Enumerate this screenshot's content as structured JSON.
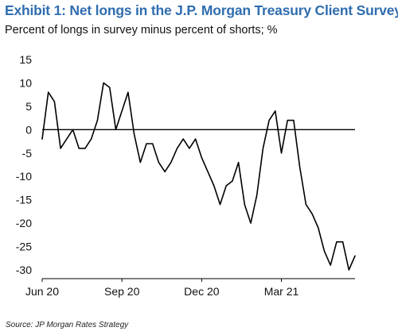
{
  "header": {
    "title": "Exhibit 1: Net longs in the J.P. Morgan Treasury Client Survey",
    "subtitle": "Percent of longs in survey minus percent of shorts; %"
  },
  "footer": {
    "source": "Source: JP Morgan Rates Strategy"
  },
  "colors": {
    "title": "#2f6db0",
    "line": "#000000",
    "axis": "#000000"
  },
  "chart_data": {
    "type": "line",
    "title": "Exhibit 1: Net longs in the J.P. Morgan Treasury Client Survey",
    "subtitle": "Percent of longs in survey minus percent of shorts; %",
    "xlabel": "",
    "ylabel": "",
    "ylim": [
      -30,
      15
    ],
    "yticks": [
      15,
      10,
      5,
      0,
      -5,
      -10,
      -15,
      -20,
      -25,
      -30
    ],
    "xticks": [
      "Jun 20",
      "Sep 20",
      "Dec 20",
      "Mar 21"
    ],
    "xtick_index": [
      0,
      13,
      26,
      39
    ],
    "grid": false,
    "legend": "none",
    "series": [
      {
        "values": [
          -2,
          8,
          6,
          -4,
          -2,
          0,
          -4,
          -4,
          -2,
          2,
          10,
          9,
          0,
          4,
          8,
          -1,
          -7,
          -3,
          -3,
          -7,
          -9,
          -7,
          -4,
          -2,
          -4,
          -2,
          -6,
          -9,
          -12,
          -16,
          -12,
          -11,
          -7,
          -16,
          -20,
          -14,
          -4,
          2,
          4,
          -5,
          2,
          2,
          -8,
          -16,
          -18,
          -21,
          -26,
          -29,
          -24,
          -24,
          -30,
          -27
        ]
      }
    ]
  }
}
